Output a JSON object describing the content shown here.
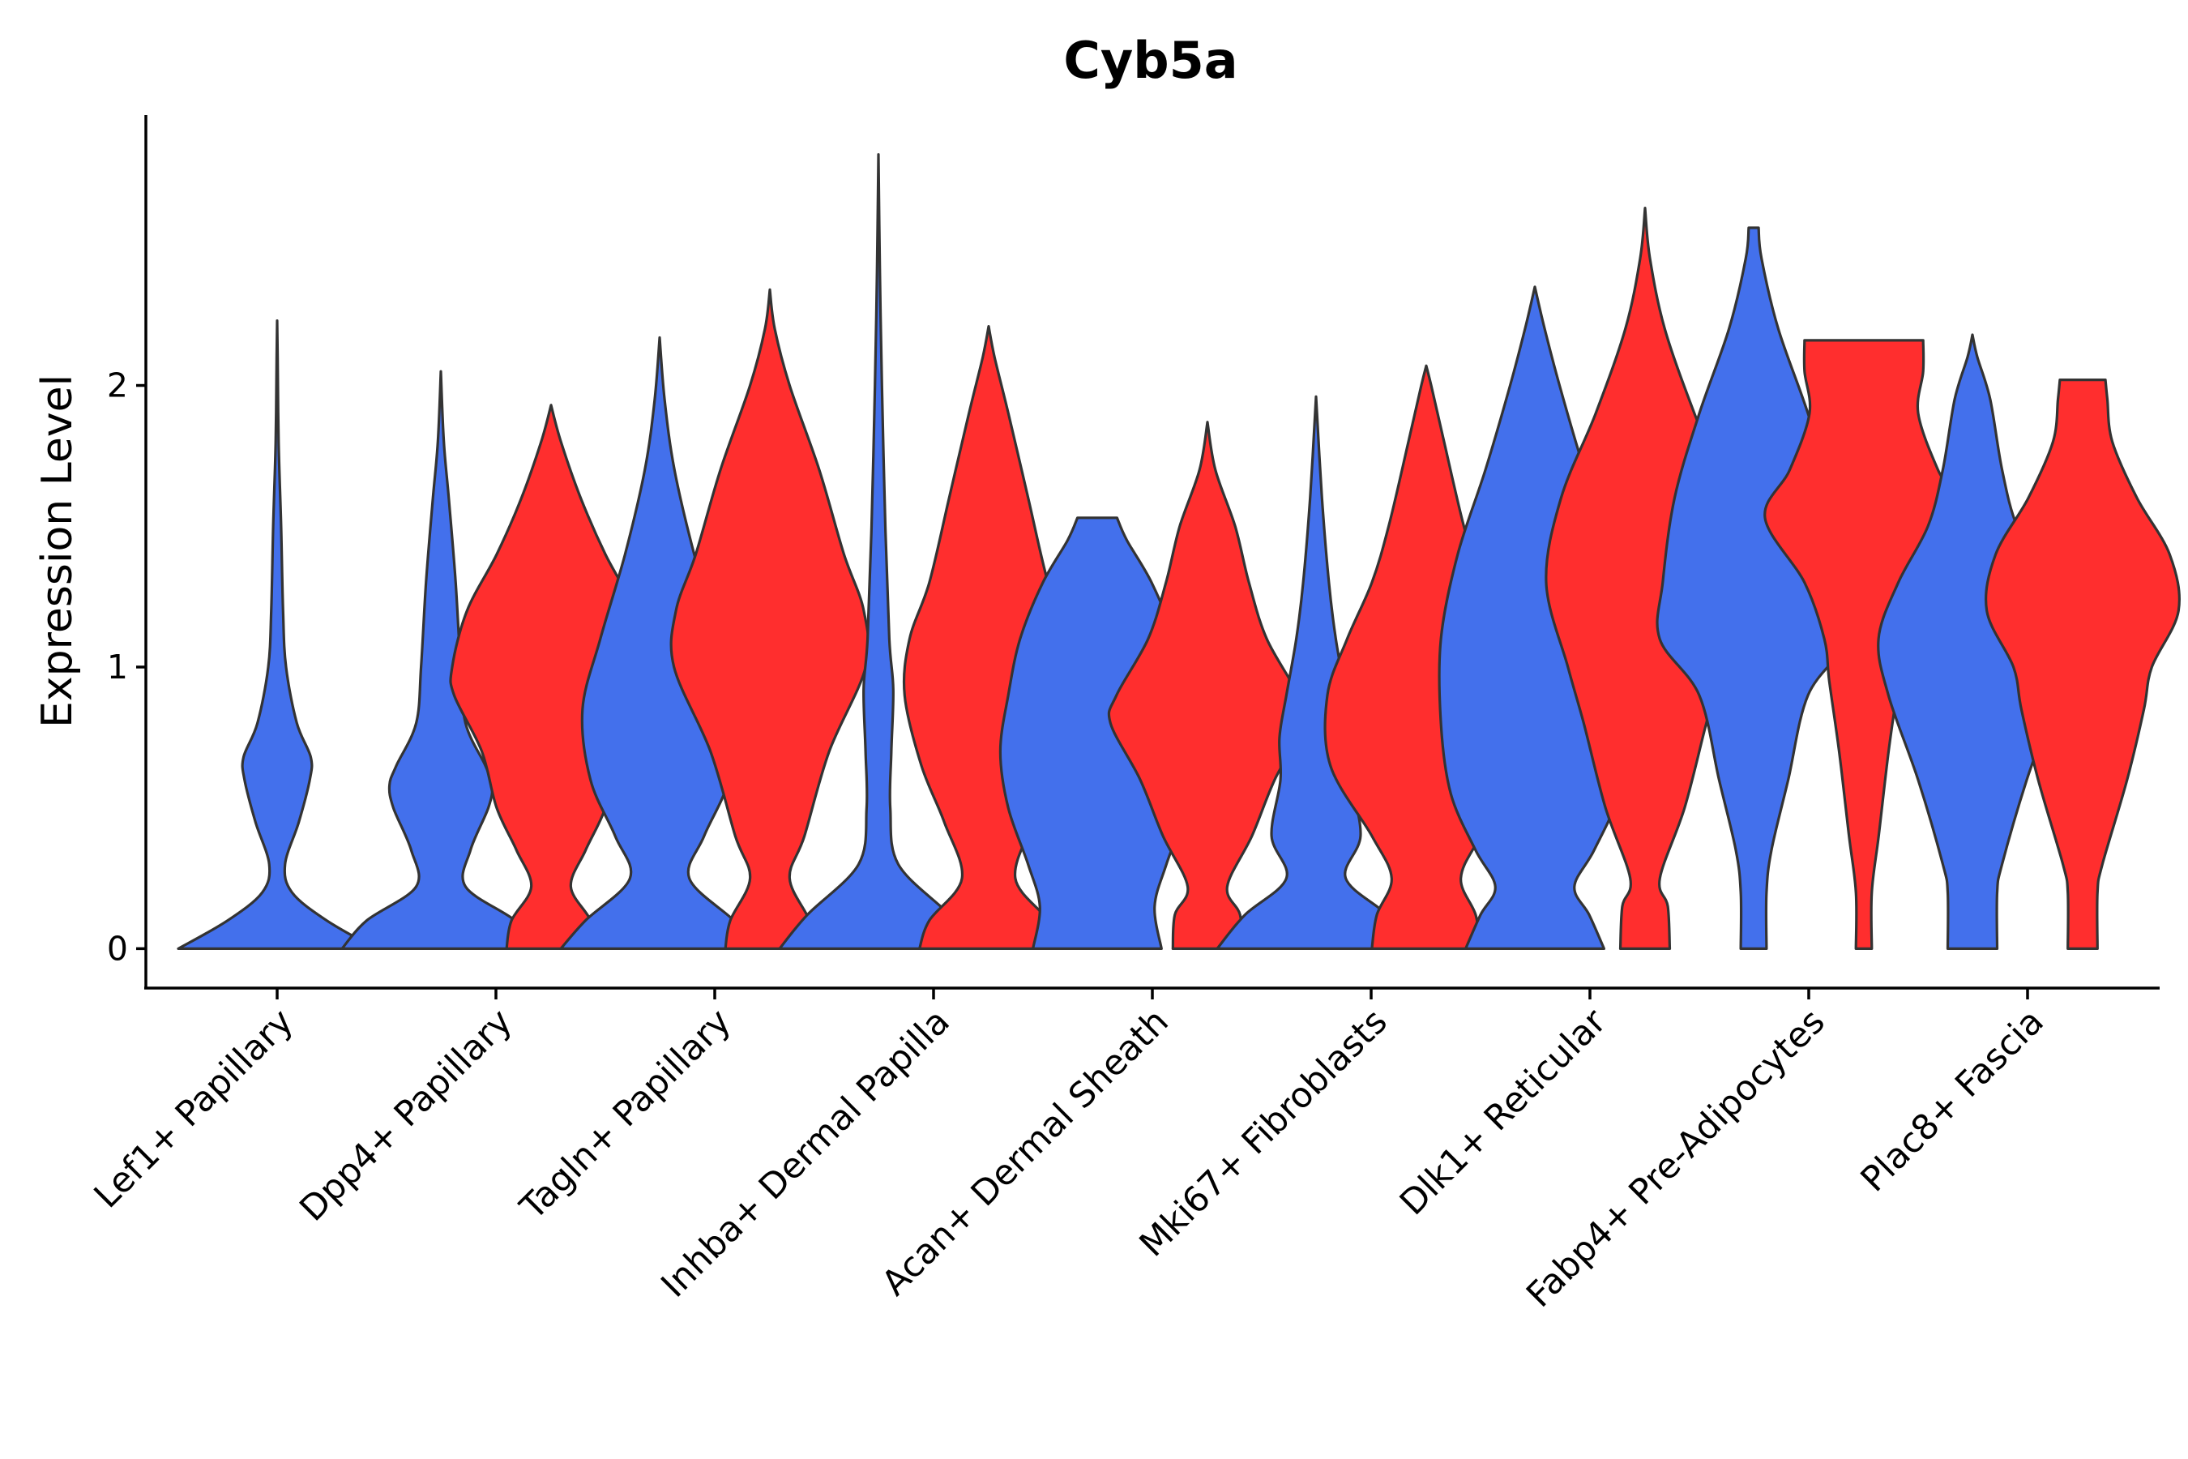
{
  "chart_data": {
    "type": "violin",
    "title": "Cyb5a",
    "xlabel": "",
    "ylabel": "Expression Level",
    "ylim": [
      -0.14,
      2.96
    ],
    "yticks": [
      0,
      1,
      2
    ],
    "grid": false,
    "legend": "none",
    "colors": {
      "blue": "#4370EC",
      "red": "#FF2E2E",
      "outline": "#333333"
    },
    "categories": [
      "Lef1+ Papillary",
      "Dpp4+ Papillary",
      "Tagln+ Papillary",
      "Inhba+ Dermal Papilla",
      "Acan+ Dermal Sheath",
      "Mki67+ Fibroblasts",
      "Dlk1+ Reticular",
      "Fabp4+ Pre-Adipocytes",
      "Plac8+ Fascia"
    ],
    "violins": [
      {
        "category": "Lef1+ Papillary",
        "group": "blue",
        "max": 2.23,
        "density": [
          [
            0,
            1.0
          ],
          [
            0.1,
            0.5
          ],
          [
            0.2,
            0.15
          ],
          [
            0.3,
            0.08
          ],
          [
            0.45,
            0.22
          ],
          [
            0.6,
            0.33
          ],
          [
            0.68,
            0.34
          ],
          [
            0.8,
            0.2
          ],
          [
            1.0,
            0.09
          ],
          [
            1.2,
            0.06
          ],
          [
            1.5,
            0.04
          ],
          [
            1.8,
            0.015
          ],
          [
            2.1,
            0.005
          ],
          [
            2.23,
            0
          ]
        ]
      },
      {
        "category": "Dpp4+ Papillary",
        "group": "blue",
        "max": 2.05,
        "density": [
          [
            0,
            1.0
          ],
          [
            0.1,
            0.75
          ],
          [
            0.22,
            0.25
          ],
          [
            0.35,
            0.3
          ],
          [
            0.5,
            0.48
          ],
          [
            0.58,
            0.52
          ],
          [
            0.65,
            0.45
          ],
          [
            0.8,
            0.25
          ],
          [
            1.0,
            0.2
          ],
          [
            1.3,
            0.15
          ],
          [
            1.6,
            0.08
          ],
          [
            1.8,
            0.03
          ],
          [
            2.05,
            0
          ]
        ]
      },
      {
        "category": "Dpp4+ Papillary",
        "group": "red",
        "max": 1.93,
        "density": [
          [
            0,
            0.45
          ],
          [
            0.1,
            0.4
          ],
          [
            0.22,
            0.2
          ],
          [
            0.35,
            0.35
          ],
          [
            0.5,
            0.55
          ],
          [
            0.7,
            0.7
          ],
          [
            0.9,
            0.98
          ],
          [
            1.0,
            1.0
          ],
          [
            1.2,
            0.85
          ],
          [
            1.4,
            0.55
          ],
          [
            1.6,
            0.3
          ],
          [
            1.8,
            0.1
          ],
          [
            1.93,
            0
          ]
        ]
      },
      {
        "category": "Tagln+ Papillary",
        "group": "blue",
        "max": 2.17,
        "density": [
          [
            0,
            1.0
          ],
          [
            0.1,
            0.75
          ],
          [
            0.25,
            0.3
          ],
          [
            0.4,
            0.45
          ],
          [
            0.6,
            0.7
          ],
          [
            0.85,
            0.78
          ],
          [
            1.1,
            0.6
          ],
          [
            1.4,
            0.35
          ],
          [
            1.7,
            0.15
          ],
          [
            1.95,
            0.05
          ],
          [
            2.17,
            0
          ]
        ]
      },
      {
        "category": "Tagln+ Papillary",
        "group": "red",
        "max": 2.34,
        "density": [
          [
            0,
            0.45
          ],
          [
            0.1,
            0.4
          ],
          [
            0.25,
            0.2
          ],
          [
            0.4,
            0.35
          ],
          [
            0.7,
            0.6
          ],
          [
            1.0,
            0.97
          ],
          [
            1.2,
            0.95
          ],
          [
            1.4,
            0.75
          ],
          [
            1.7,
            0.5
          ],
          [
            2.0,
            0.2
          ],
          [
            2.2,
            0.05
          ],
          [
            2.34,
            0
          ]
        ]
      },
      {
        "category": "Inhba+ Dermal Papilla",
        "group": "blue",
        "max": 2.82,
        "density": [
          [
            0,
            1.0
          ],
          [
            0.12,
            0.72
          ],
          [
            0.3,
            0.2
          ],
          [
            0.5,
            0.12
          ],
          [
            0.7,
            0.13
          ],
          [
            0.92,
            0.15
          ],
          [
            1.1,
            0.11
          ],
          [
            1.5,
            0.07
          ],
          [
            2.0,
            0.035
          ],
          [
            2.4,
            0.015
          ],
          [
            2.82,
            0
          ]
        ]
      },
      {
        "category": "Inhba+ Dermal Papilla",
        "group": "red",
        "max": 2.21,
        "density": [
          [
            0,
            0.7
          ],
          [
            0.1,
            0.6
          ],
          [
            0.25,
            0.27
          ],
          [
            0.45,
            0.45
          ],
          [
            0.65,
            0.68
          ],
          [
            0.9,
            0.85
          ],
          [
            1.1,
            0.8
          ],
          [
            1.3,
            0.6
          ],
          [
            1.6,
            0.4
          ],
          [
            1.9,
            0.2
          ],
          [
            2.1,
            0.06
          ],
          [
            2.21,
            0
          ]
        ]
      },
      {
        "category": "Acan+ Dermal Sheath",
        "group": "blue",
        "max": 1.53,
        "density": [
          [
            0,
            0.65
          ],
          [
            0.15,
            0.58
          ],
          [
            0.3,
            0.7
          ],
          [
            0.5,
            0.9
          ],
          [
            0.7,
            0.98
          ],
          [
            0.9,
            0.9
          ],
          [
            1.1,
            0.78
          ],
          [
            1.3,
            0.55
          ],
          [
            1.45,
            0.3
          ],
          [
            1.53,
            0.2
          ]
        ]
      },
      {
        "category": "Acan+ Dermal Sheath",
        "group": "red",
        "max": 1.87,
        "density": [
          [
            0,
            0.35
          ],
          [
            0.12,
            0.33
          ],
          [
            0.22,
            0.2
          ],
          [
            0.4,
            0.45
          ],
          [
            0.6,
            0.68
          ],
          [
            0.8,
            0.98
          ],
          [
            0.9,
            0.92
          ],
          [
            1.1,
            0.6
          ],
          [
            1.3,
            0.42
          ],
          [
            1.5,
            0.28
          ],
          [
            1.7,
            0.08
          ],
          [
            1.87,
            0
          ]
        ]
      },
      {
        "category": "Mki67+ Fibroblasts",
        "group": "blue",
        "max": 1.96,
        "density": [
          [
            0,
            1.0
          ],
          [
            0.12,
            0.72
          ],
          [
            0.25,
            0.3
          ],
          [
            0.4,
            0.45
          ],
          [
            0.6,
            0.36
          ],
          [
            0.75,
            0.37
          ],
          [
            0.9,
            0.3
          ],
          [
            1.1,
            0.2
          ],
          [
            1.3,
            0.13
          ],
          [
            1.6,
            0.06
          ],
          [
            1.96,
            0
          ]
        ]
      },
      {
        "category": "Mki67+ Fibroblasts",
        "group": "red",
        "max": 2.07,
        "density": [
          [
            0,
            0.55
          ],
          [
            0.12,
            0.5
          ],
          [
            0.25,
            0.35
          ],
          [
            0.4,
            0.55
          ],
          [
            0.65,
            0.97
          ],
          [
            0.9,
            1.0
          ],
          [
            1.1,
            0.8
          ],
          [
            1.3,
            0.55
          ],
          [
            1.5,
            0.38
          ],
          [
            1.8,
            0.18
          ],
          [
            2.0,
            0.05
          ],
          [
            2.07,
            0
          ]
        ]
      },
      {
        "category": "Dlk1+ Reticular",
        "group": "blue",
        "max": 2.35,
        "density": [
          [
            0,
            0.7
          ],
          [
            0.12,
            0.55
          ],
          [
            0.22,
            0.4
          ],
          [
            0.35,
            0.6
          ],
          [
            0.55,
            0.85
          ],
          [
            0.8,
            0.95
          ],
          [
            1.1,
            0.95
          ],
          [
            1.4,
            0.78
          ],
          [
            1.7,
            0.5
          ],
          [
            2.0,
            0.25
          ],
          [
            2.2,
            0.1
          ],
          [
            2.35,
            0
          ]
        ]
      },
      {
        "category": "Dlk1+ Reticular",
        "group": "red",
        "max": 2.63,
        "density": [
          [
            0,
            0.25
          ],
          [
            0.15,
            0.23
          ],
          [
            0.25,
            0.15
          ],
          [
            0.5,
            0.4
          ],
          [
            0.8,
            0.62
          ],
          [
            1.0,
            0.78
          ],
          [
            1.3,
            1.0
          ],
          [
            1.6,
            0.85
          ],
          [
            1.9,
            0.5
          ],
          [
            2.2,
            0.2
          ],
          [
            2.45,
            0.05
          ],
          [
            2.63,
            0
          ]
        ]
      },
      {
        "category": "Fabp4+ Pre-Adipocytes",
        "group": "blue",
        "max": 2.56,
        "density": [
          [
            0,
            0.13
          ],
          [
            0.2,
            0.13
          ],
          [
            0.35,
            0.18
          ],
          [
            0.6,
            0.35
          ],
          [
            0.9,
            0.55
          ],
          [
            1.1,
            0.95
          ],
          [
            1.3,
            0.92
          ],
          [
            1.6,
            0.8
          ],
          [
            1.9,
            0.55
          ],
          [
            2.2,
            0.25
          ],
          [
            2.45,
            0.08
          ],
          [
            2.56,
            0.05
          ]
        ]
      },
      {
        "category": "Fabp4+ Pre-Adipocytes",
        "group": "red",
        "max": 2.16,
        "density": [
          [
            0,
            0.08
          ],
          [
            0.2,
            0.08
          ],
          [
            0.4,
            0.15
          ],
          [
            0.7,
            0.25
          ],
          [
            0.95,
            0.35
          ],
          [
            1.1,
            0.4
          ],
          [
            1.3,
            0.6
          ],
          [
            1.53,
            1.0
          ],
          [
            1.7,
            0.75
          ],
          [
            1.9,
            0.55
          ],
          [
            2.05,
            0.6
          ],
          [
            2.16,
            0.6
          ]
        ]
      },
      {
        "category": "Plac8+ Fascia",
        "group": "blue",
        "max": 2.18,
        "density": [
          [
            0,
            0.25
          ],
          [
            0.2,
            0.25
          ],
          [
            0.3,
            0.3
          ],
          [
            0.6,
            0.55
          ],
          [
            0.9,
            0.85
          ],
          [
            1.1,
            0.95
          ],
          [
            1.3,
            0.75
          ],
          [
            1.5,
            0.45
          ],
          [
            1.7,
            0.3
          ],
          [
            1.95,
            0.18
          ],
          [
            2.1,
            0.05
          ],
          [
            2.18,
            0
          ]
        ]
      },
      {
        "category": "Plac8+ Fascia",
        "group": "red",
        "max": 2.02,
        "density": [
          [
            0,
            0.15
          ],
          [
            0.2,
            0.15
          ],
          [
            0.3,
            0.2
          ],
          [
            0.6,
            0.45
          ],
          [
            0.85,
            0.62
          ],
          [
            1.0,
            0.7
          ],
          [
            1.2,
            0.97
          ],
          [
            1.4,
            0.88
          ],
          [
            1.6,
            0.55
          ],
          [
            1.8,
            0.3
          ],
          [
            1.95,
            0.25
          ],
          [
            2.02,
            0.23
          ]
        ]
      }
    ]
  }
}
